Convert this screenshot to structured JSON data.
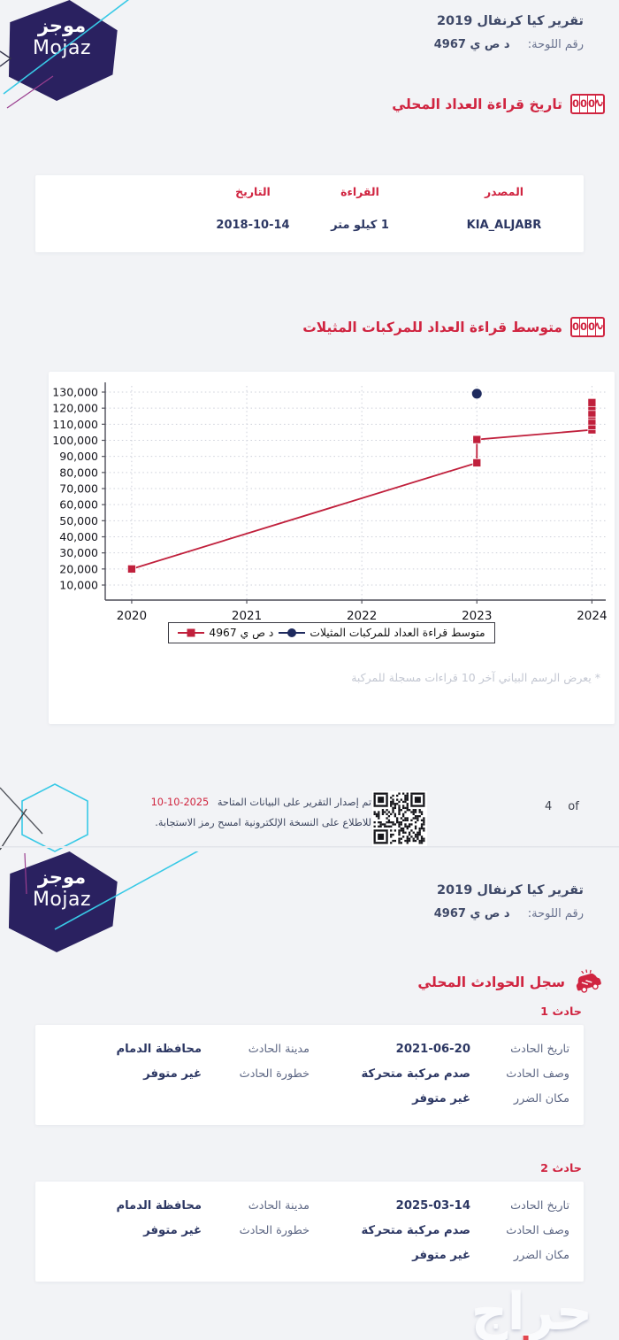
{
  "logo": {
    "arabic": "موجز",
    "latin": "Mojaz"
  },
  "report": {
    "title": "تقرير كيا كرنفال 2019",
    "plate_label": "رقم اللوحة:",
    "plate_value": "د ص ي 4967"
  },
  "icons": {
    "odometer_digits": "000",
    "odometer_half": "2"
  },
  "page1": {
    "odometer_section": {
      "title": "تاريخ قراءة العداد المحلي",
      "table": {
        "headers": [
          "المصدر",
          "القراءة",
          "التاريخ"
        ],
        "rows": [
          [
            "KIA_ALJABR",
            "1 كيلو متر",
            "2018-10-14"
          ]
        ]
      }
    },
    "chart_section": {
      "title": "متوسط قراءة العداد للمركبات المثيلات",
      "footnote": "* يعرض الرسم البياني آخر 10 قراءات مسجلة للمركبة"
    },
    "footer": {
      "issue_text": "تم إصدار التقرير على البيانات المتاحة",
      "issue_date": "2025-10-10",
      "qr_text": "للاطلاع على النسخة الإلكترونية امسح رمز الاستجابة.",
      "page_number": "4",
      "page_of": "of"
    }
  },
  "chart_data": {
    "type": "line",
    "title": "",
    "xlabel": "",
    "ylabel": "",
    "x_ticks": [
      2020,
      2021,
      2022,
      2023,
      2024
    ],
    "y_ticks": [
      10000,
      20000,
      30000,
      40000,
      50000,
      60000,
      70000,
      80000,
      90000,
      100000,
      110000,
      120000,
      130000
    ],
    "xlim": [
      2019.77,
      2024.12
    ],
    "ylim": [
      650,
      133850
    ],
    "grid": "dotted",
    "legend_position": "bottom-center",
    "series": [
      {
        "name": "د ص ي 4967",
        "marker": "square",
        "color": "#c0203c",
        "connect": true,
        "points": [
          [
            2020,
            20000
          ],
          [
            2023,
            86000
          ],
          [
            2023,
            100500
          ],
          [
            2024,
            106500
          ],
          [
            2024,
            109000
          ],
          [
            2024,
            112000
          ],
          [
            2024,
            115500
          ],
          [
            2024,
            117000
          ],
          [
            2024,
            121000
          ],
          [
            2024,
            123500
          ]
        ]
      },
      {
        "name": "متوسط قراءة العداد للمركبات المثيلات",
        "marker": "circle",
        "color": "#1e2a5e",
        "connect": false,
        "points": [
          [
            2023,
            129000
          ]
        ]
      }
    ]
  },
  "page2": {
    "accidents_section": {
      "title": "سجل الحوادث المحلي",
      "accidents": [
        {
          "label": "حادث 1",
          "rows": [
            [
              {
                "label": "تاريخ الحادث",
                "value": "2021-06-20"
              },
              {
                "label": "مدينة الحادث",
                "value": "محافظة الدمام"
              }
            ],
            [
              {
                "label": "وصف الحادث",
                "value": "صدم مركبة متحركة"
              },
              {
                "label": "خطورة الحادث",
                "value": "غير متوفر"
              }
            ],
            [
              {
                "label": "مكان الضرر",
                "value": "غير متوفر"
              },
              null
            ]
          ]
        },
        {
          "label": "حادث 2",
          "rows": [
            [
              {
                "label": "تاريخ الحادث",
                "value": "2025-03-14"
              },
              {
                "label": "مدينة الحادث",
                "value": "محافظة الدمام"
              }
            ],
            [
              {
                "label": "وصف الحادث",
                "value": "صدم مركبة متحركة"
              },
              {
                "label": "خطورة الحادث",
                "value": "غير متوفر"
              }
            ],
            [
              {
                "label": "مكان الضرر",
                "value": "غير متوفر"
              },
              null
            ]
          ]
        }
      ]
    },
    "watermark": "حراج"
  },
  "colors": {
    "accent_red": "#d02440",
    "line_red": "#c0203c",
    "dot_navy": "#1e2a5e",
    "text_navy": "#2c3763",
    "label_slate": "#5d6784",
    "logo_indigo": "#2a2160",
    "cyan": "#38c9e6",
    "background": "#f2f3f6"
  }
}
